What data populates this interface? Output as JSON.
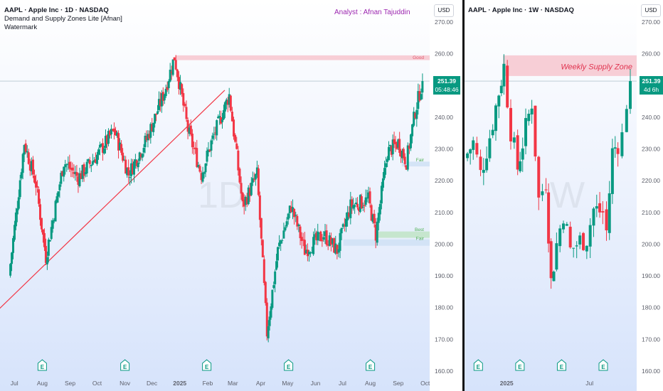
{
  "colors": {
    "up": "#089981",
    "down": "#f23645",
    "supply": "#f7c6cf",
    "demand_blue": "#cfe0f5",
    "demand_green": "#bfe4c6",
    "trend": "#f23645",
    "analyst": "#9c27b0"
  },
  "left": {
    "header": {
      "line1": "AAPL · Apple Inc · 1D · NASDAQ",
      "line2": "Demand and Supply Zones Lite [Afnan]",
      "line3": "Watermark"
    },
    "analyst": "Analyst : Afnan Tajuddin",
    "currency": "USD",
    "watermark": "1D",
    "price_tag": {
      "price": "251.39",
      "countdown": "05:48:46"
    },
    "zone_labels": {
      "good": "Good",
      "fair_upper": "Fair",
      "best": "Best",
      "fair_lower": "Fair"
    },
    "y_ticks": [
      "270.00",
      "260.00",
      "250.00",
      "240.00",
      "230.00",
      "220.00",
      "210.00",
      "200.00",
      "190.00",
      "180.00",
      "170.00",
      "160.00"
    ],
    "x_ticks": [
      "Jul",
      "Aug",
      "Sep",
      "Oct",
      "Nov",
      "Dec",
      "2025",
      "Feb",
      "Mar",
      "Apr",
      "May",
      "Jun",
      "Jul",
      "Aug",
      "Sep",
      "Oct"
    ],
    "earnings_icon": "E"
  },
  "right": {
    "header": {
      "line1": "AAPL · Apple Inc · 1W · NASDAQ"
    },
    "currency": "USD",
    "watermark": "W",
    "supply_zone_label": "Weekly Supply Zone",
    "price_tag": {
      "price": "251.39",
      "countdown": "4d 6h"
    },
    "y_ticks": [
      "270.00",
      "260.00",
      "250.00",
      "240.00",
      "230.00",
      "220.00",
      "210.00",
      "200.00",
      "190.00",
      "180.00",
      "170.00",
      "160.00"
    ],
    "x_ticks": [
      "2025",
      "Jul"
    ],
    "earnings_icon": "E"
  },
  "chart_data": [
    {
      "type": "candlestick",
      "symbol": "AAPL",
      "interval": "1D",
      "ylim": [
        160,
        270
      ],
      "x_range": [
        "2024-06",
        "2025-10"
      ],
      "zones": [
        {
          "label": "Good",
          "kind": "supply",
          "low": 258,
          "high": 259.5
        },
        {
          "label": "Fair",
          "kind": "demand",
          "low": 224.5,
          "high": 226
        },
        {
          "label": "Best",
          "kind": "demand",
          "low": 202,
          "high": 204
        },
        {
          "label": "Fair",
          "kind": "demand",
          "low": 199.5,
          "high": 201.5
        }
      ],
      "trendline": {
        "from": {
          "date": "2024-06-01",
          "price": 176
        },
        "to": {
          "date": "2025-02-20",
          "price": 248.5
        }
      },
      "last_price": 251.39,
      "price_path": [
        {
          "date": "2024-06-25",
          "price": 190
        },
        {
          "date": "2024-07-12",
          "price": 232
        },
        {
          "date": "2024-07-25",
          "price": 219
        },
        {
          "date": "2024-08-05",
          "price": 196
        },
        {
          "date": "2024-08-25",
          "price": 226
        },
        {
          "date": "2024-09-10",
          "price": 221
        },
        {
          "date": "2024-10-01",
          "price": 228
        },
        {
          "date": "2024-10-20",
          "price": 236
        },
        {
          "date": "2024-11-05",
          "price": 222
        },
        {
          "date": "2024-11-25",
          "price": 233
        },
        {
          "date": "2024-12-15",
          "price": 248
        },
        {
          "date": "2024-12-26",
          "price": 259
        },
        {
          "date": "2025-01-10",
          "price": 236
        },
        {
          "date": "2025-01-25",
          "price": 222
        },
        {
          "date": "2025-02-05",
          "price": 232
        },
        {
          "date": "2025-02-25",
          "price": 247
        },
        {
          "date": "2025-03-12",
          "price": 212
        },
        {
          "date": "2025-03-28",
          "price": 222
        },
        {
          "date": "2025-04-08",
          "price": 172
        },
        {
          "date": "2025-04-20",
          "price": 198
        },
        {
          "date": "2025-05-05",
          "price": 212
        },
        {
          "date": "2025-05-20",
          "price": 198
        },
        {
          "date": "2025-06-10",
          "price": 203
        },
        {
          "date": "2025-06-25",
          "price": 198
        },
        {
          "date": "2025-07-10",
          "price": 212
        },
        {
          "date": "2025-07-30",
          "price": 214
        },
        {
          "date": "2025-08-07",
          "price": 203
        },
        {
          "date": "2025-08-20",
          "price": 229
        },
        {
          "date": "2025-09-01",
          "price": 232
        },
        {
          "date": "2025-09-10",
          "price": 226
        },
        {
          "date": "2025-09-20",
          "price": 242
        },
        {
          "date": "2025-09-28",
          "price": 251.39
        }
      ]
    },
    {
      "type": "candlestick",
      "symbol": "AAPL",
      "interval": "1W",
      "ylim": [
        160,
        270
      ],
      "zones": [
        {
          "label": "Weekly Supply Zone",
          "kind": "supply",
          "low": 253,
          "high": 259.5
        }
      ],
      "last_price": 251.39,
      "price_path": [
        {
          "date": "2024-10-01",
          "price": 227
        },
        {
          "date": "2024-10-20",
          "price": 232
        },
        {
          "date": "2024-11-05",
          "price": 222
        },
        {
          "date": "2024-11-25",
          "price": 234
        },
        {
          "date": "2024-12-15",
          "price": 248
        },
        {
          "date": "2024-12-26",
          "price": 256
        },
        {
          "date": "2025-01-10",
          "price": 236
        },
        {
          "date": "2025-01-25",
          "price": 224
        },
        {
          "date": "2025-02-05",
          "price": 232
        },
        {
          "date": "2025-02-25",
          "price": 245
        },
        {
          "date": "2025-03-12",
          "price": 214
        },
        {
          "date": "2025-03-28",
          "price": 220
        },
        {
          "date": "2025-04-08",
          "price": 188
        },
        {
          "date": "2025-04-20",
          "price": 200
        },
        {
          "date": "2025-05-05",
          "price": 210
        },
        {
          "date": "2025-05-20",
          "price": 198
        },
        {
          "date": "2025-06-10",
          "price": 201
        },
        {
          "date": "2025-06-25",
          "price": 202
        },
        {
          "date": "2025-07-10",
          "price": 211
        },
        {
          "date": "2025-07-30",
          "price": 210
        },
        {
          "date": "2025-08-07",
          "price": 204
        },
        {
          "date": "2025-08-20",
          "price": 229
        },
        {
          "date": "2025-09-01",
          "price": 232
        },
        {
          "date": "2025-09-10",
          "price": 234
        },
        {
          "date": "2025-09-20",
          "price": 245
        },
        {
          "date": "2025-09-28",
          "price": 251.39
        }
      ]
    }
  ]
}
